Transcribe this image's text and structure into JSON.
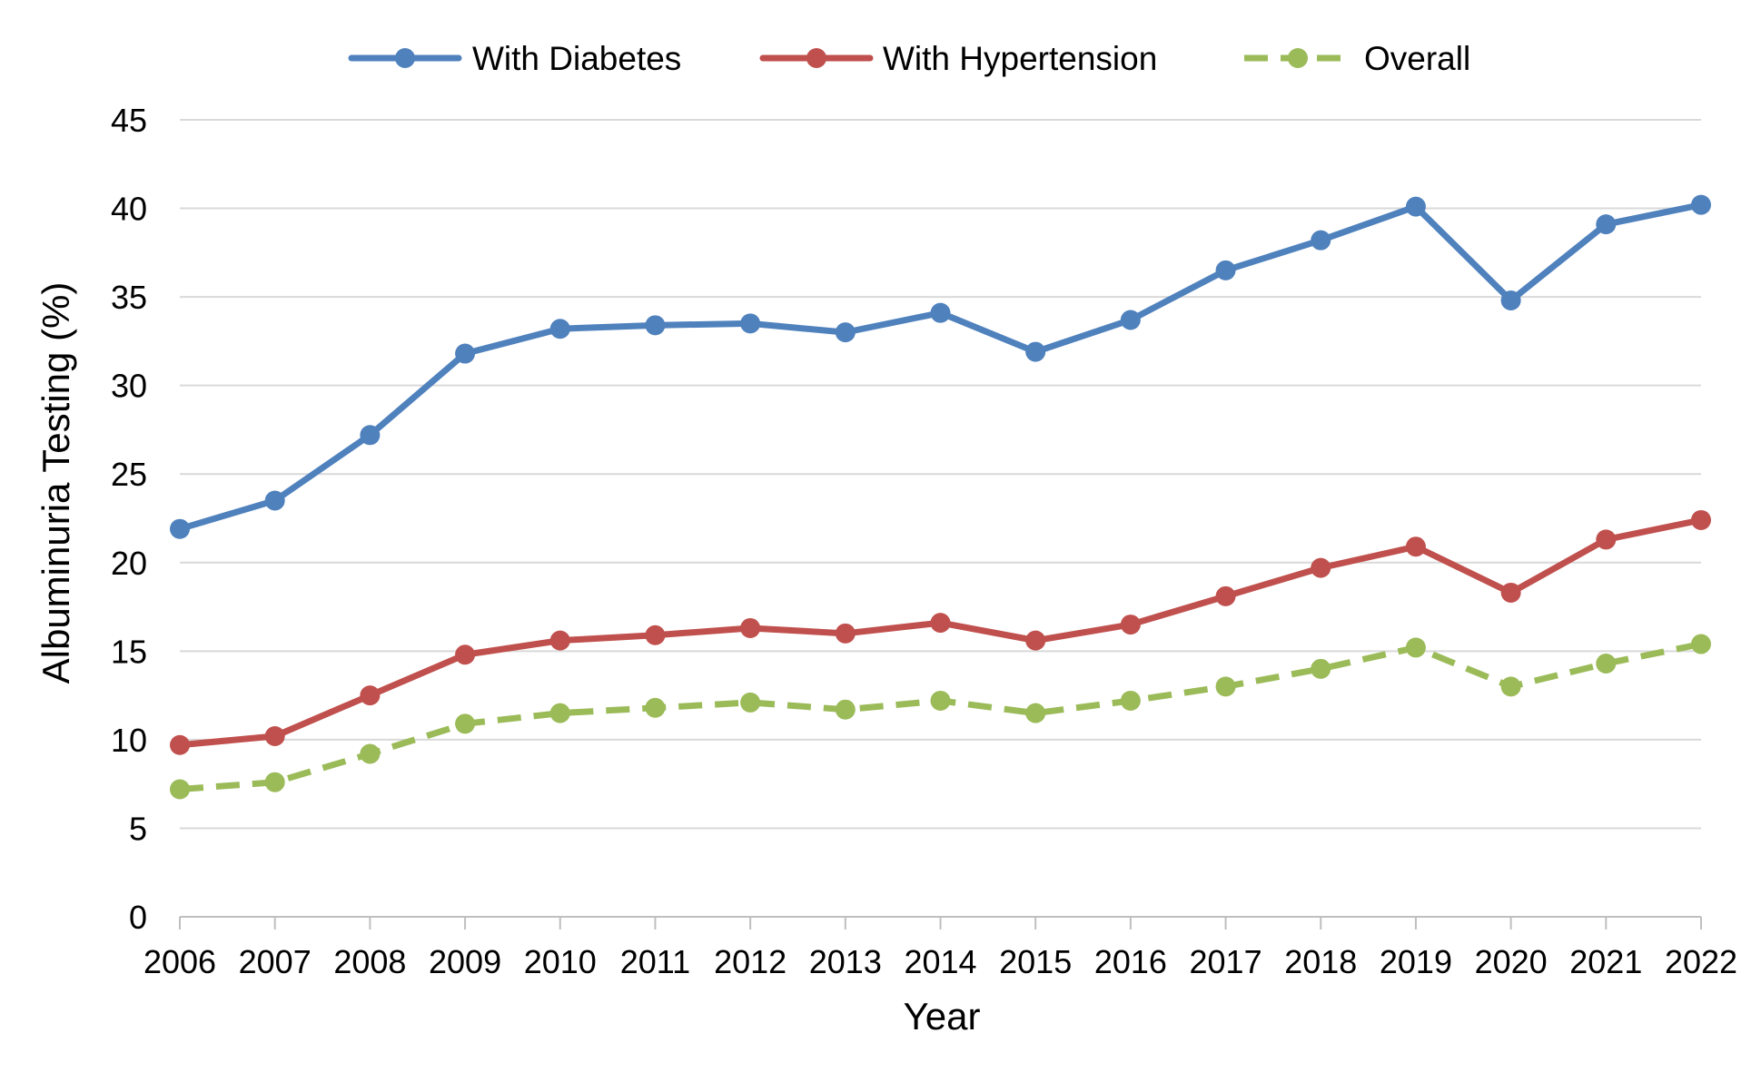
{
  "chart_data": {
    "type": "line",
    "title": "",
    "xlabel": "Year",
    "ylabel": "Albuminuria Testing (%)",
    "ylim": [
      0,
      45
    ],
    "yticks": [
      0,
      5,
      10,
      15,
      20,
      25,
      30,
      35,
      40,
      45
    ],
    "grid": "horizontal",
    "legend_position": "top-center",
    "categories": [
      "2006",
      "2007",
      "2008",
      "2009",
      "2010",
      "2011",
      "2012",
      "2013",
      "2014",
      "2015",
      "2016",
      "2017",
      "2018",
      "2019",
      "2020",
      "2021",
      "2022"
    ],
    "series": [
      {
        "name": "With Diabetes",
        "color": "#4F81BD",
        "dashed": false,
        "values": [
          21.9,
          23.5,
          27.2,
          31.8,
          33.2,
          33.4,
          33.5,
          33.0,
          34.1,
          31.9,
          33.7,
          36.5,
          38.2,
          40.1,
          34.8,
          39.1,
          40.2
        ]
      },
      {
        "name": "With Hypertension",
        "color": "#C0504D",
        "dashed": false,
        "values": [
          9.7,
          10.2,
          12.5,
          14.8,
          15.6,
          15.9,
          16.3,
          16.0,
          16.6,
          15.6,
          16.5,
          18.1,
          19.7,
          20.9,
          18.3,
          21.3,
          22.4
        ]
      },
      {
        "name": "Overall",
        "color": "#9BBB59",
        "dashed": true,
        "values": [
          7.2,
          7.6,
          9.2,
          10.9,
          11.5,
          11.8,
          12.1,
          11.7,
          12.2,
          11.5,
          12.2,
          13.0,
          14.0,
          15.2,
          13.0,
          14.3,
          15.4
        ]
      }
    ]
  }
}
